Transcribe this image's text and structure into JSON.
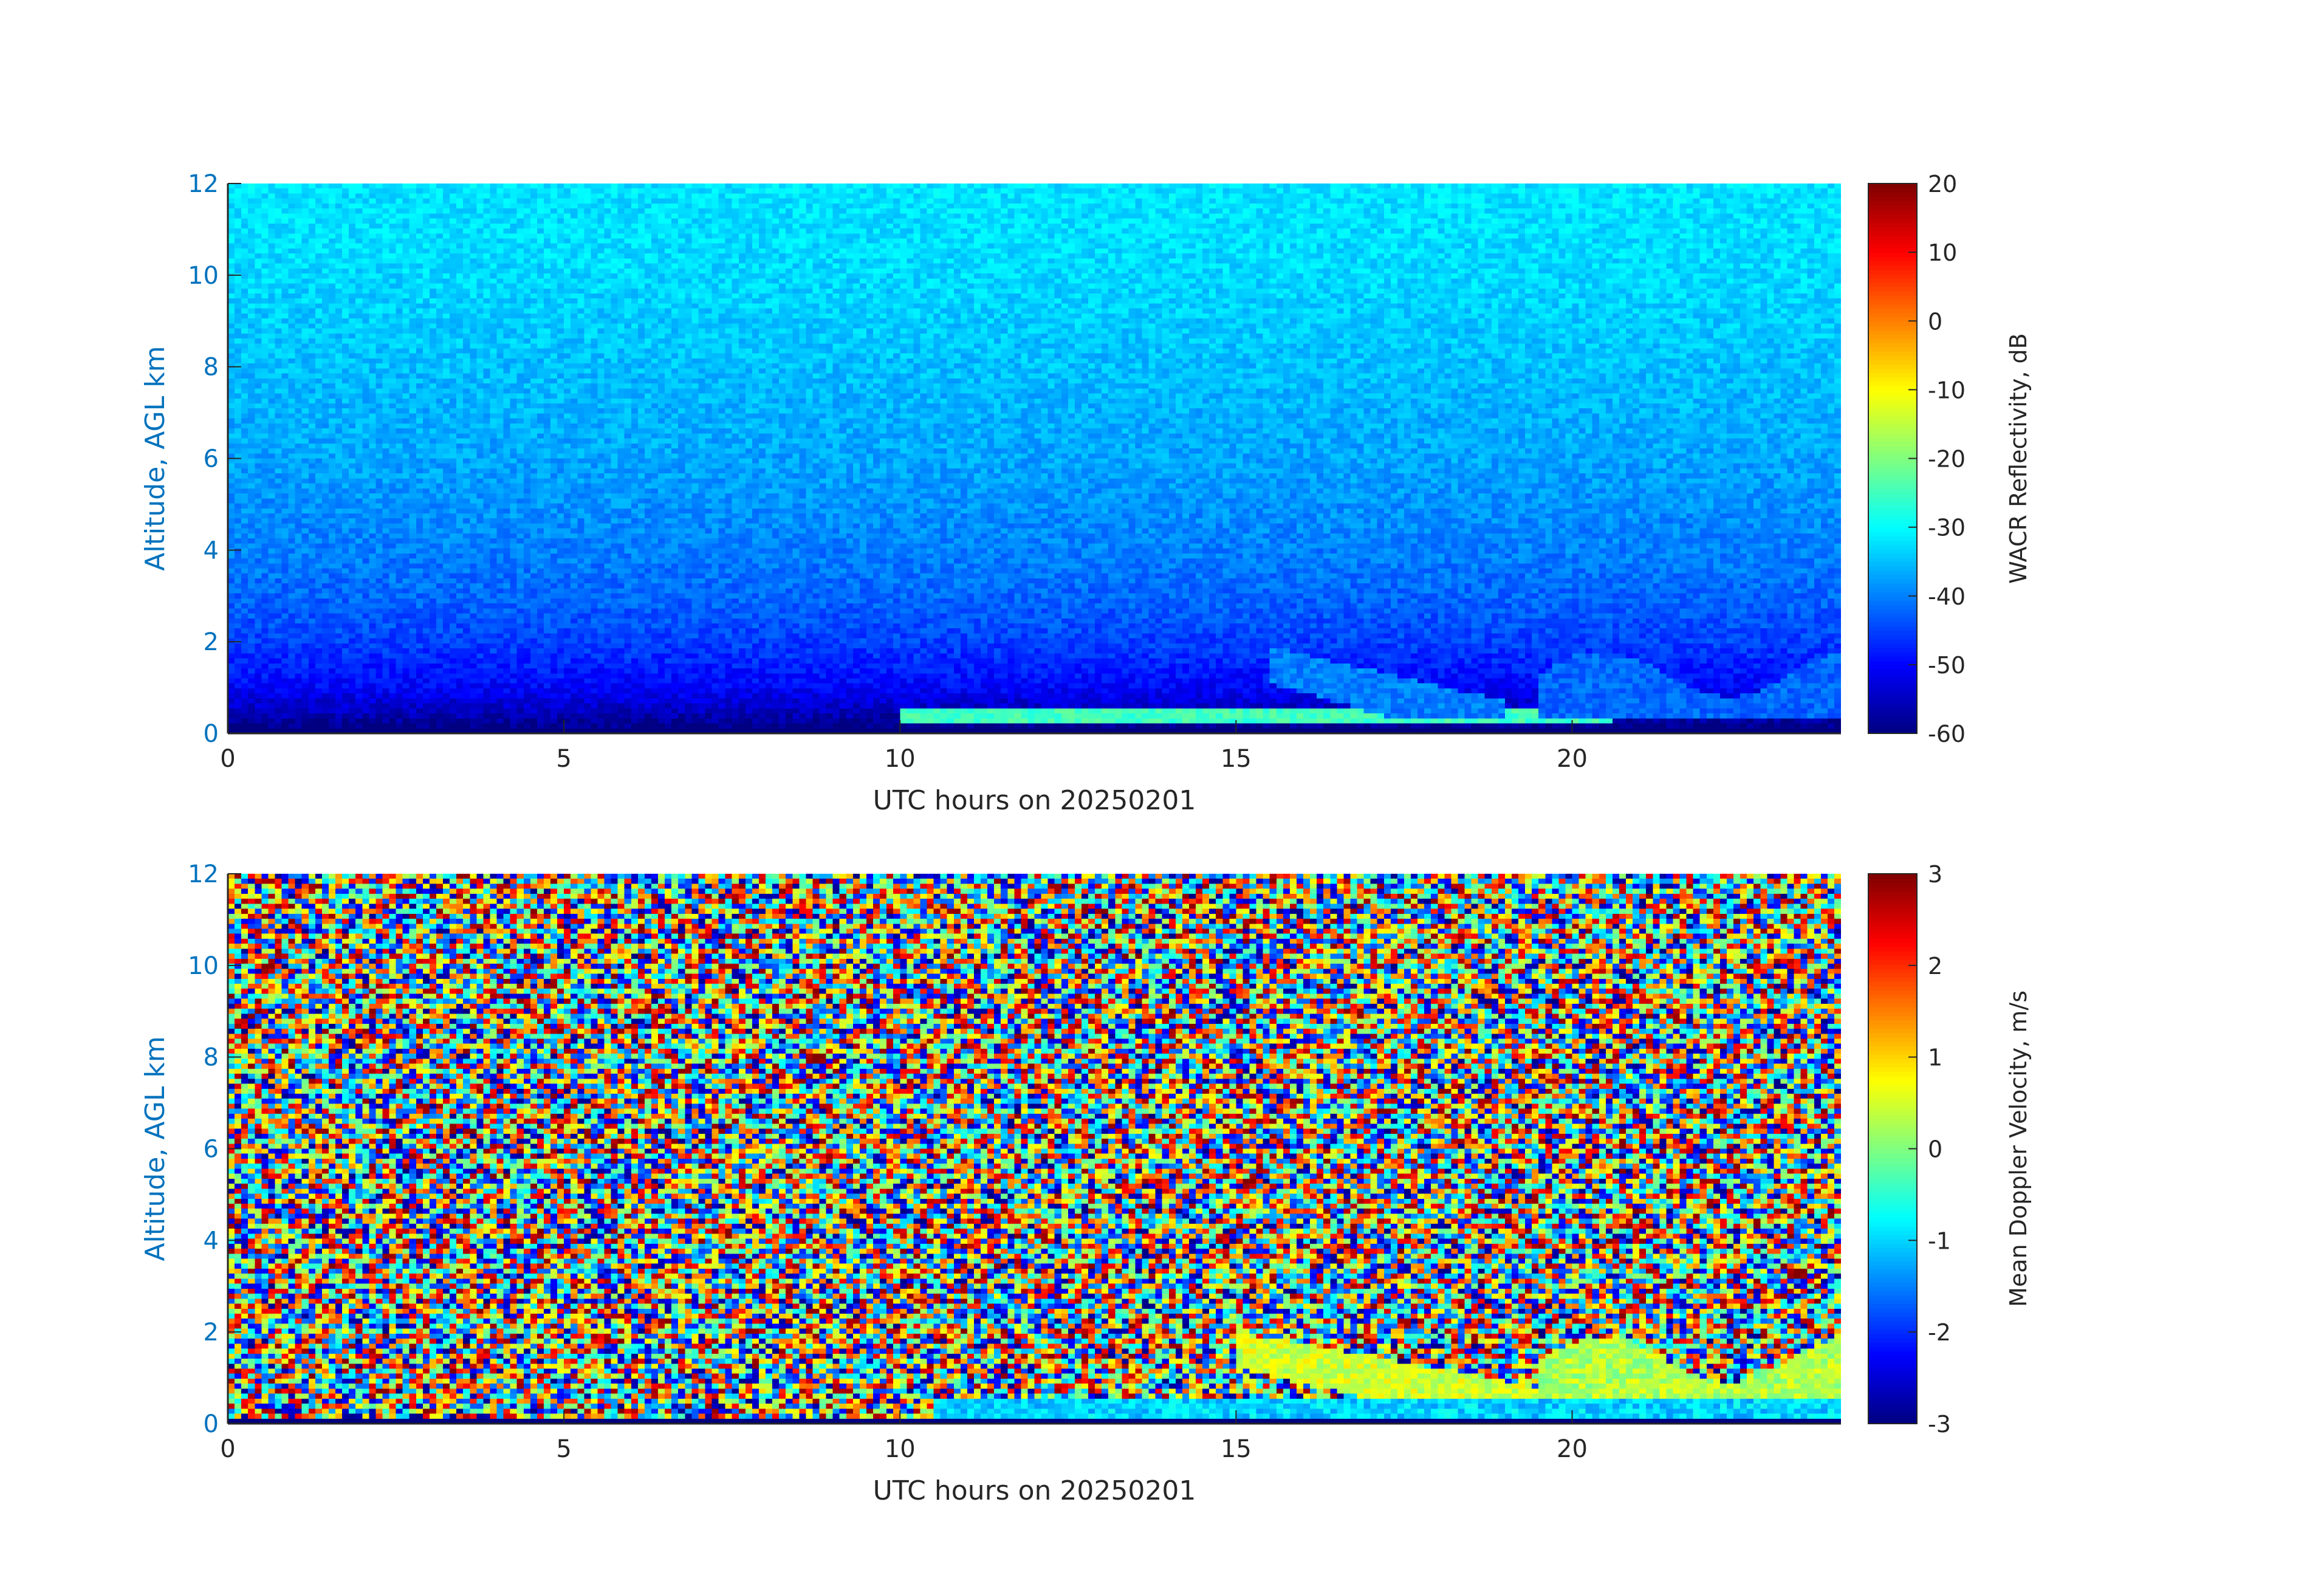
{
  "chart_data": [
    {
      "type": "heatmap",
      "panel": "reflectivity",
      "xlabel": "UTC hours on 20250201",
      "ylabel": "Altitude, AGL km",
      "xlim": [
        0,
        24
      ],
      "ylim": [
        0,
        12
      ],
      "xticks": [
        0,
        5,
        10,
        15,
        20
      ],
      "yticks": [
        0,
        2,
        4,
        6,
        8,
        10,
        12
      ],
      "colorbar": {
        "label": "WACR Reflectivity, dB",
        "range": [
          -60,
          20
        ],
        "ticks": [
          20,
          10,
          0,
          -10,
          -20,
          -30,
          -40,
          -50,
          -60
        ],
        "colormap": "jet"
      },
      "background_profile": {
        "altitude_km": [
          0.1,
          0.5,
          1.0,
          2.0,
          3.0,
          4.0,
          6.0,
          8.0,
          10.0,
          12.0
        ],
        "reflectivity_db": [
          -60,
          -55,
          -50,
          -45,
          -42,
          -40,
          -37,
          -35,
          -33,
          -32
        ]
      },
      "features": [
        {
          "name": "low echo layer",
          "time_utc": [
            10.0,
            20.6
          ],
          "altitude_km": [
            0.2,
            0.5
          ],
          "reflectivity_db": -25
        },
        {
          "name": "sloping cloud band",
          "time_utc": [
            15.5,
            19.0
          ],
          "altitude_km": [
            0.3,
            1.9
          ],
          "reflectivity_db": -40
        },
        {
          "name": "cloud patch",
          "time_utc": [
            19.5,
            24.0
          ],
          "altitude_km": [
            0.3,
            2.0
          ],
          "reflectivity_db": -42
        }
      ]
    },
    {
      "type": "heatmap",
      "panel": "velocity",
      "xlabel": "UTC hours on 20250201",
      "ylabel": "Altitude, AGL km",
      "xlim": [
        0,
        24
      ],
      "ylim": [
        0,
        12
      ],
      "xticks": [
        0,
        5,
        10,
        15,
        20
      ],
      "yticks": [
        0,
        2,
        4,
        6,
        8,
        10,
        12
      ],
      "colorbar": {
        "label": "Mean Doppler Velocity, m/s",
        "range": [
          -3,
          3
        ],
        "ticks": [
          3,
          2,
          1,
          0,
          -1,
          -2,
          -3
        ],
        "colormap": "jet"
      },
      "background": "random noise spanning -3 to 3 m/s",
      "features": [
        {
          "name": "sloping cloud band",
          "time_utc": [
            15.0,
            19.5
          ],
          "altitude_km": [
            0.4,
            2.0
          ],
          "velocity_ms": 0.5
        },
        {
          "name": "cloud band",
          "time_utc": [
            19.5,
            24.0
          ],
          "altitude_km": [
            0.3,
            2.1
          ],
          "velocity_ms": 0.3
        },
        {
          "name": "near-surface layer",
          "time_utc": [
            10.5,
            24.0
          ],
          "altitude_km": [
            0.1,
            0.5
          ],
          "velocity_ms": -1.0
        }
      ]
    }
  ]
}
